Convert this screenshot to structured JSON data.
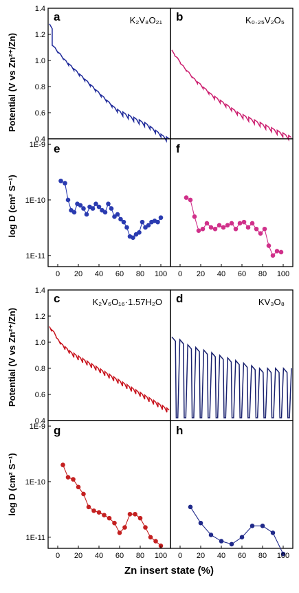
{
  "colors": {
    "a": "#1f2a9a",
    "b": "#cc1f6f",
    "c": "#c8141e",
    "d": "#18206e",
    "e": "#2a3bb0",
    "f": "#d0308a",
    "g": "#c42020",
    "h": "#202a8a"
  },
  "labels": {
    "y_potential": "Potential (V vs Zn²⁺/Zn)",
    "y_logd": "log D  (cm² S⁻¹)",
    "x_common": "Zn insert state (%)"
  },
  "chart_data": [
    {
      "id": "a",
      "type": "line",
      "letter": "a",
      "formula": "K₂V₈O₂₁",
      "ylim": [
        0.4,
        1.4
      ],
      "yticks": [
        "0.4",
        "0.6",
        "0.8",
        "1.0",
        "1.2",
        "1.4"
      ],
      "series": [
        {
          "values": [
            1.28,
            1.1,
            1.05,
            1.0,
            0.96,
            0.92,
            0.88,
            0.84,
            0.8,
            0.76,
            0.72,
            0.68,
            0.64,
            0.61,
            0.59,
            0.57,
            0.55,
            0.53,
            0.51,
            0.48,
            0.45,
            0.42,
            0.4
          ]
        }
      ]
    },
    {
      "id": "b",
      "type": "line",
      "letter": "b",
      "formula": "K₀.₂₅V₂O₅",
      "ylim": [
        0.4,
        1.4
      ],
      "series": [
        {
          "values": [
            1.08,
            1.02,
            0.96,
            0.91,
            0.86,
            0.82,
            0.78,
            0.74,
            0.71,
            0.68,
            0.65,
            0.62,
            0.59,
            0.57,
            0.55,
            0.53,
            0.51,
            0.49,
            0.47,
            0.45,
            0.43,
            0.41
          ]
        }
      ]
    },
    {
      "id": "e",
      "type": "line",
      "letter": "e",
      "ylim": [
        -11.2,
        -8.9
      ],
      "yticks": [
        "1E-11",
        "1E-10",
        "1E-9"
      ],
      "xticks": [
        "0",
        "20",
        "40",
        "60",
        "80",
        "100"
      ],
      "series": [
        {
          "x": [
            3,
            7,
            10,
            13,
            16,
            19,
            22,
            25,
            28,
            31,
            34,
            37,
            40,
            43,
            46,
            49,
            52,
            55,
            58,
            61,
            64,
            67,
            70,
            73,
            76,
            79,
            82,
            85,
            88,
            91,
            94,
            97,
            100
          ],
          "values": [
            2.2e-10,
            2e-10,
            1e-10,
            6.5e-11,
            6e-11,
            8.5e-11,
            8e-11,
            7e-11,
            5.5e-11,
            7.5e-11,
            7e-11,
            8.5e-11,
            7.5e-11,
            6.5e-11,
            6e-11,
            8.5e-11,
            7e-11,
            5e-11,
            5.5e-11,
            4.5e-11,
            4e-11,
            3.2e-11,
            2.2e-11,
            2.1e-11,
            2.4e-11,
            2.6e-11,
            4e-11,
            3.2e-11,
            3.5e-11,
            4e-11,
            4.2e-11,
            4e-11,
            4.8e-11
          ]
        }
      ]
    },
    {
      "id": "f",
      "type": "line",
      "letter": "f",
      "ylim": [
        -11.2,
        -8.9
      ],
      "series": [
        {
          "x": [
            6,
            10,
            14,
            18,
            22,
            26,
            30,
            34,
            38,
            42,
            46,
            50,
            54,
            58,
            62,
            66,
            70,
            74,
            78,
            82,
            86,
            90,
            94,
            98
          ],
          "values": [
            1.1e-10,
            1e-10,
            5e-11,
            2.8e-11,
            3e-11,
            3.8e-11,
            3.2e-11,
            3e-11,
            3.5e-11,
            3.2e-11,
            3.5e-11,
            3.8e-11,
            3e-11,
            3.8e-11,
            4e-11,
            3.2e-11,
            3.8e-11,
            3e-11,
            2.5e-11,
            3e-11,
            1.5e-11,
            1e-11,
            1.2e-11,
            1.15e-11
          ]
        }
      ]
    },
    {
      "id": "c",
      "type": "line",
      "letter": "c",
      "formula": "K₂V₆O₁₆·1.57H₂O",
      "ylim": [
        0.4,
        1.4
      ],
      "yticks": [
        "0.4",
        "0.6",
        "0.8",
        "1.0",
        "1.2",
        "1.4"
      ],
      "series": [
        {
          "values": [
            1.12,
            1.08,
            1.02,
            0.98,
            0.95,
            0.92,
            0.9,
            0.88,
            0.86,
            0.84,
            0.82,
            0.8,
            0.78,
            0.76,
            0.74,
            0.72,
            0.7,
            0.68,
            0.66,
            0.64,
            0.62,
            0.6,
            0.58,
            0.56,
            0.54,
            0.52,
            0.5,
            0.48
          ]
        }
      ]
    },
    {
      "id": "d",
      "type": "line",
      "letter": "d",
      "formula": "KV₃O₈",
      "ylim": [
        0.4,
        1.4
      ],
      "series": [
        {
          "values": [
            1.04,
            1.02,
            0.98,
            0.96,
            0.94,
            0.92,
            0.9,
            0.88,
            0.86,
            0.84,
            0.82,
            0.8,
            0.8,
            0.8,
            0.8
          ]
        }
      ]
    },
    {
      "id": "g",
      "type": "line",
      "letter": "g",
      "ylim": [
        -11.2,
        -8.9
      ],
      "yticks": [
        "1E-11",
        "1E-10",
        "1E-9"
      ],
      "xticks": [
        "0",
        "20",
        "40",
        "60",
        "80",
        "100"
      ],
      "series": [
        {
          "x": [
            5,
            10,
            15,
            20,
            25,
            30,
            35,
            40,
            45,
            50,
            55,
            60,
            65,
            70,
            75,
            80,
            85,
            90,
            95,
            100
          ],
          "values": [
            2e-10,
            1.2e-10,
            1.1e-10,
            8e-11,
            6e-11,
            3.5e-11,
            3e-11,
            2.8e-11,
            2.5e-11,
            2.2e-11,
            1.8e-11,
            1.2e-11,
            1.5e-11,
            2.6e-11,
            2.6e-11,
            2.2e-11,
            1.5e-11,
            1e-11,
            8.5e-12,
            7e-12
          ]
        }
      ]
    },
    {
      "id": "h",
      "type": "line",
      "letter": "h",
      "ylim": [
        -11.2,
        -8.9
      ],
      "series": [
        {
          "x": [
            10,
            20,
            30,
            40,
            50,
            60,
            70,
            80,
            90,
            100
          ],
          "values": [
            3.5e-11,
            1.8e-11,
            1.1e-11,
            8.5e-12,
            7.5e-12,
            1e-11,
            1.6e-11,
            1.6e-11,
            1.2e-11,
            5e-12
          ]
        }
      ]
    }
  ]
}
